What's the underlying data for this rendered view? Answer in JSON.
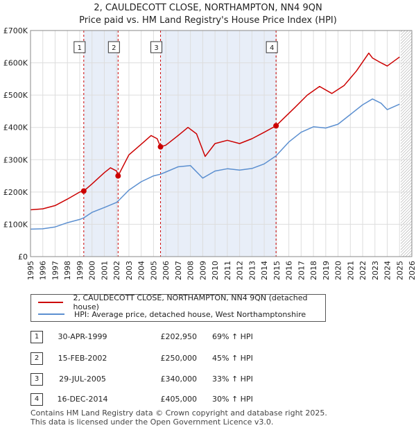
{
  "chart_data": {
    "type": "line",
    "title": "2, CAULDECOTT CLOSE, NORTHAMPTON, NN4 9QN",
    "subtitle": "Price paid vs. HM Land Registry's House Price Index (HPI)",
    "xlim": [
      1995,
      2026
    ],
    "ylim": [
      0,
      700000
    ],
    "y_ticks": [
      {
        "value": 0,
        "label": "£0"
      },
      {
        "value": 100000,
        "label": "£100K"
      },
      {
        "value": 200000,
        "label": "£200K"
      },
      {
        "value": 300000,
        "label": "£300K"
      },
      {
        "value": 400000,
        "label": "£400K"
      },
      {
        "value": 500000,
        "label": "£500K"
      },
      {
        "value": 600000,
        "label": "£600K"
      },
      {
        "value": 700000,
        "label": "£700K"
      }
    ],
    "x_ticks": [
      "1995",
      "1996",
      "1997",
      "1998",
      "1999",
      "2000",
      "2001",
      "2002",
      "2003",
      "2004",
      "2005",
      "2006",
      "2007",
      "2008",
      "2009",
      "2010",
      "2011",
      "2012",
      "2013",
      "2014",
      "2015",
      "2016",
      "2017",
      "2018",
      "2019",
      "2020",
      "2021",
      "2022",
      "2023",
      "2024",
      "2025",
      "2026"
    ],
    "shaded_periods": [
      [
        1999.33,
        2002.12
      ],
      [
        2005.57,
        2014.96
      ]
    ],
    "hatched_region": [
      2025.1,
      2026
    ],
    "series": [
      {
        "name": "2, CAULDECOTT CLOSE, NORTHAMPTON, NN4 9QN (detached house)",
        "color": "#cc0000",
        "x": [
          1995.0,
          1996.0,
          1997.0,
          1998.0,
          1999.0,
          1999.33,
          2000.0,
          2001.0,
          2001.5,
          2002.0,
          2002.12,
          2003.0,
          2004.0,
          2004.8,
          2005.3,
          2005.57,
          2006.0,
          2007.0,
          2007.8,
          2008.5,
          2009.2,
          2010.0,
          2011.0,
          2012.0,
          2013.0,
          2014.0,
          2014.96,
          2015.5,
          2016.5,
          2017.5,
          2018.5,
          2019.5,
          2020.5,
          2021.5,
          2022.5,
          2022.8,
          2023.5,
          2024.0,
          2025.0
        ],
        "y": [
          145000,
          148000,
          158000,
          178000,
          200000,
          202950,
          225000,
          260000,
          275000,
          265000,
          250000,
          315000,
          348000,
          375000,
          365000,
          340000,
          345000,
          375000,
          400000,
          380000,
          310000,
          350000,
          360000,
          350000,
          365000,
          385000,
          405000,
          425000,
          462000,
          500000,
          527000,
          505000,
          530000,
          575000,
          630000,
          615000,
          600000,
          590000,
          618000
        ]
      },
      {
        "name": "HPI: Average price, detached house, West Northamptonshire",
        "color": "#5b8fd0",
        "x": [
          1995.0,
          1996.0,
          1997.0,
          1998.0,
          1999.0,
          1999.33,
          2000.0,
          2001.0,
          2002.0,
          2002.12,
          2003.0,
          2004.0,
          2005.0,
          2005.57,
          2006.0,
          2007.0,
          2008.0,
          2009.0,
          2010.0,
          2011.0,
          2012.0,
          2013.0,
          2014.0,
          2014.96,
          2016.0,
          2017.0,
          2018.0,
          2019.0,
          2020.0,
          2021.0,
          2022.0,
          2022.8,
          2023.5,
          2024.0,
          2025.0
        ],
        "y": [
          85000,
          86000,
          92000,
          105000,
          115000,
          120000,
          137000,
          152000,
          168000,
          172000,
          206000,
          232000,
          250000,
          255000,
          262000,
          278000,
          282000,
          243000,
          265000,
          272000,
          268000,
          273000,
          287000,
          312000,
          355000,
          385000,
          402000,
          398000,
          410000,
          440000,
          470000,
          488000,
          475000,
          455000,
          472000
        ]
      }
    ],
    "sales": [
      {
        "label": "1",
        "x": 1999.33,
        "price": 202950,
        "date": "30-APR-1999",
        "price_text": "£202,950",
        "hpi_text": "69% ↑ HPI"
      },
      {
        "label": "2",
        "x": 2002.12,
        "price": 250000,
        "date": "15-FEB-2002",
        "price_text": "£250,000",
        "hpi_text": "45% ↑ HPI"
      },
      {
        "label": "3",
        "x": 2005.57,
        "price": 340000,
        "date": "29-JUL-2005",
        "price_text": "£340,000",
        "hpi_text": "33% ↑ HPI"
      },
      {
        "label": "4",
        "x": 2014.96,
        "price": 405000,
        "date": "16-DEC-2014",
        "price_text": "£405,000",
        "hpi_text": "30% ↑ HPI"
      }
    ]
  },
  "footer": {
    "line1": "Contains HM Land Registry data © Crown copyright and database right 2025.",
    "line2": "This data is licensed under the Open Government Licence v3.0."
  }
}
